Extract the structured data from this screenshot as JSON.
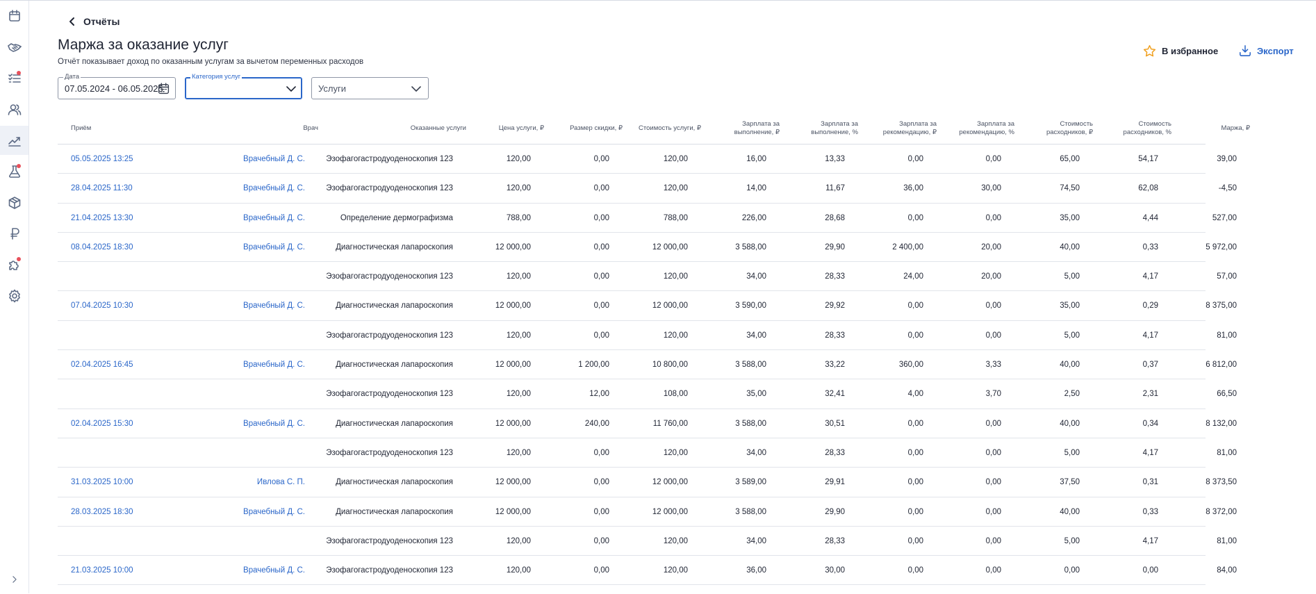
{
  "header": {
    "back_label": "Отчёты",
    "title": "Маржа за оказание услуг",
    "subtitle": "Отчёт показывает доход по оказанным услугам за вычетом переменных расходов",
    "favorite_label": "В избранное",
    "export_label": "Экспорт"
  },
  "filters": {
    "date_label": "Дата",
    "date_value": "07.05.2024 - 06.05.2025",
    "category_label": "Категория услуг",
    "category_value": "",
    "services_placeholder": "Услуги"
  },
  "colors": {
    "accent": "#2a66c9",
    "star": "#f0a020",
    "notification_dot": "#e8505b"
  },
  "sidebar": {
    "icons": [
      "calendar-icon",
      "handshake-icon",
      "task-list-icon",
      "users-icon",
      "chart-icon",
      "lab-flask-icon",
      "box-icon",
      "ruble-icon",
      "puzzle-icon",
      "settings-icon",
      "expand-chevron-icon"
    ],
    "active": "chart-icon",
    "with_notification": [
      "task-list-icon",
      "lab-flask-icon",
      "puzzle-icon"
    ]
  },
  "table": {
    "columns": [
      "Приём",
      "Врач",
      "Оказанные услуги",
      "Цена услуги, ₽",
      "Размер скидки, ₽",
      "Стоимость услуги, ₽",
      "Зарплата за\nвыполнение, ₽",
      "Зарплата за\nвыполнение, %",
      "Зарплата за\nрекомендацию, ₽",
      "Зарплата за\nрекомендацию, %",
      "Стоимость\nрасходников, ₽",
      "Стоимость\nрасходников, %",
      "Маржа, ₽"
    ],
    "rows": [
      {
        "appointment": "05.05.2025 13:25",
        "doctor": "Врачебный Д. С.",
        "service": "Эзофагогастродуоденоскопия 123",
        "price": "120,00",
        "discount": "0,00",
        "cost": "120,00",
        "salary_exec": "16,00",
        "salary_exec_pct": "13,33",
        "salary_rec": "0,00",
        "salary_rec_pct": "0,00",
        "consumables": "65,00",
        "consumables_pct": "54,17",
        "margin": "39,00"
      },
      {
        "appointment": "28.04.2025 11:30",
        "doctor": "Врачебный Д. С.",
        "service": "Эзофагогастродуоденоскопия 123",
        "price": "120,00",
        "discount": "0,00",
        "cost": "120,00",
        "salary_exec": "14,00",
        "salary_exec_pct": "11,67",
        "salary_rec": "36,00",
        "salary_rec_pct": "30,00",
        "consumables": "74,50",
        "consumables_pct": "62,08",
        "margin": "-4,50"
      },
      {
        "appointment": "21.04.2025 13:30",
        "doctor": "Врачебный Д. С.",
        "service": "Определение дермографизма",
        "price": "788,00",
        "discount": "0,00",
        "cost": "788,00",
        "salary_exec": "226,00",
        "salary_exec_pct": "28,68",
        "salary_rec": "0,00",
        "salary_rec_pct": "0,00",
        "consumables": "35,00",
        "consumables_pct": "4,44",
        "margin": "527,00"
      },
      {
        "appointment": "08.04.2025 18:30",
        "doctor": "Врачебный Д. С.",
        "service": "Диагностическая лапароскопия",
        "price": "12 000,00",
        "discount": "0,00",
        "cost": "12 000,00",
        "salary_exec": "3 588,00",
        "salary_exec_pct": "29,90",
        "salary_rec": "2 400,00",
        "salary_rec_pct": "20,00",
        "consumables": "40,00",
        "consumables_pct": "0,33",
        "margin": "5 972,00"
      },
      {
        "appointment": "",
        "doctor": "",
        "service": "Эзофагогастродуоденоскопия 123",
        "price": "120,00",
        "discount": "0,00",
        "cost": "120,00",
        "salary_exec": "34,00",
        "salary_exec_pct": "28,33",
        "salary_rec": "24,00",
        "salary_rec_pct": "20,00",
        "consumables": "5,00",
        "consumables_pct": "4,17",
        "margin": "57,00"
      },
      {
        "appointment": "07.04.2025 10:30",
        "doctor": "Врачебный Д. С.",
        "service": "Диагностическая лапароскопия",
        "price": "12 000,00",
        "discount": "0,00",
        "cost": "12 000,00",
        "salary_exec": "3 590,00",
        "salary_exec_pct": "29,92",
        "salary_rec": "0,00",
        "salary_rec_pct": "0,00",
        "consumables": "35,00",
        "consumables_pct": "0,29",
        "margin": "8 375,00"
      },
      {
        "appointment": "",
        "doctor": "",
        "service": "Эзофагогастродуоденоскопия 123",
        "price": "120,00",
        "discount": "0,00",
        "cost": "120,00",
        "salary_exec": "34,00",
        "salary_exec_pct": "28,33",
        "salary_rec": "0,00",
        "salary_rec_pct": "0,00",
        "consumables": "5,00",
        "consumables_pct": "4,17",
        "margin": "81,00"
      },
      {
        "appointment": "02.04.2025 16:45",
        "doctor": "Врачебный Д. С.",
        "service": "Диагностическая лапароскопия",
        "price": "12 000,00",
        "discount": "1 200,00",
        "cost": "10 800,00",
        "salary_exec": "3 588,00",
        "salary_exec_pct": "33,22",
        "salary_rec": "360,00",
        "salary_rec_pct": "3,33",
        "consumables": "40,00",
        "consumables_pct": "0,37",
        "margin": "6 812,00"
      },
      {
        "appointment": "",
        "doctor": "",
        "service": "Эзофагогастродуоденоскопия 123",
        "price": "120,00",
        "discount": "12,00",
        "cost": "108,00",
        "salary_exec": "35,00",
        "salary_exec_pct": "32,41",
        "salary_rec": "4,00",
        "salary_rec_pct": "3,70",
        "consumables": "2,50",
        "consumables_pct": "2,31",
        "margin": "66,50"
      },
      {
        "appointment": "02.04.2025 15:30",
        "doctor": "Врачебный Д. С.",
        "service": "Диагностическая лапароскопия",
        "price": "12 000,00",
        "discount": "240,00",
        "cost": "11 760,00",
        "salary_exec": "3 588,00",
        "salary_exec_pct": "30,51",
        "salary_rec": "0,00",
        "salary_rec_pct": "0,00",
        "consumables": "40,00",
        "consumables_pct": "0,34",
        "margin": "8 132,00"
      },
      {
        "appointment": "",
        "doctor": "",
        "service": "Эзофагогастродуоденоскопия 123",
        "price": "120,00",
        "discount": "0,00",
        "cost": "120,00",
        "salary_exec": "34,00",
        "salary_exec_pct": "28,33",
        "salary_rec": "0,00",
        "salary_rec_pct": "0,00",
        "consumables": "5,00",
        "consumables_pct": "4,17",
        "margin": "81,00"
      },
      {
        "appointment": "31.03.2025 10:00",
        "doctor": "Ивлова С. П.",
        "service": "Диагностическая лапароскопия",
        "price": "12 000,00",
        "discount": "0,00",
        "cost": "12 000,00",
        "salary_exec": "3 589,00",
        "salary_exec_pct": "29,91",
        "salary_rec": "0,00",
        "salary_rec_pct": "0,00",
        "consumables": "37,50",
        "consumables_pct": "0,31",
        "margin": "8 373,50"
      },
      {
        "appointment": "28.03.2025 18:30",
        "doctor": "Врачебный Д. С.",
        "service": "Диагностическая лапароскопия",
        "price": "12 000,00",
        "discount": "0,00",
        "cost": "12 000,00",
        "salary_exec": "3 588,00",
        "salary_exec_pct": "29,90",
        "salary_rec": "0,00",
        "salary_rec_pct": "0,00",
        "consumables": "40,00",
        "consumables_pct": "0,33",
        "margin": "8 372,00"
      },
      {
        "appointment": "",
        "doctor": "",
        "service": "Эзофагогастродуоденоскопия 123",
        "price": "120,00",
        "discount": "0,00",
        "cost": "120,00",
        "salary_exec": "34,00",
        "salary_exec_pct": "28,33",
        "salary_rec": "0,00",
        "salary_rec_pct": "0,00",
        "consumables": "5,00",
        "consumables_pct": "4,17",
        "margin": "81,00"
      },
      {
        "appointment": "21.03.2025 10:00",
        "doctor": "Врачебный Д. С.",
        "service": "Эзофагогастродуоденоскопия 123",
        "price": "120,00",
        "discount": "0,00",
        "cost": "120,00",
        "salary_exec": "36,00",
        "salary_exec_pct": "30,00",
        "salary_rec": "0,00",
        "salary_rec_pct": "0,00",
        "consumables": "0,00",
        "consumables_pct": "0,00",
        "margin": "84,00"
      }
    ]
  }
}
